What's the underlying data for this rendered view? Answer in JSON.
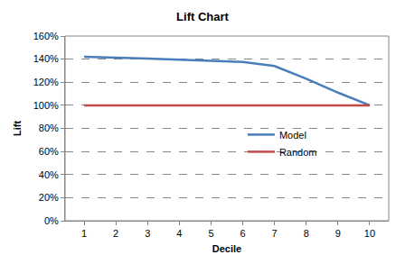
{
  "chart_data": {
    "type": "line",
    "title": "Lift Chart",
    "x_label": "Decile",
    "y_label": "Lift",
    "categories": [
      "1",
      "2",
      "3",
      "4",
      "5",
      "6",
      "7",
      "8",
      "9",
      "10"
    ],
    "series": [
      {
        "name": "Model",
        "color": "#4a7ebb",
        "values": [
          142,
          141.5,
          140.5,
          139.5,
          138.5,
          137.5,
          134,
          123,
          111,
          100
        ]
      },
      {
        "name": "Random",
        "color": "#be4b48",
        "values": [
          100,
          100,
          100,
          100,
          100,
          100,
          100,
          100,
          100,
          100
        ]
      }
    ],
    "ylim": [
      0,
      160
    ],
    "yticks": [
      {
        "value": 0,
        "label": "0%"
      },
      {
        "value": 20,
        "label": "20%"
      },
      {
        "value": 40,
        "label": "40%"
      },
      {
        "value": 60,
        "label": "60%"
      },
      {
        "value": 80,
        "label": "80%"
      },
      {
        "value": 100,
        "label": "100%"
      },
      {
        "value": 120,
        "label": "120%"
      },
      {
        "value": 140,
        "label": "140%"
      },
      {
        "value": 160,
        "label": "160%"
      }
    ],
    "grid": true,
    "legend": "right"
  }
}
